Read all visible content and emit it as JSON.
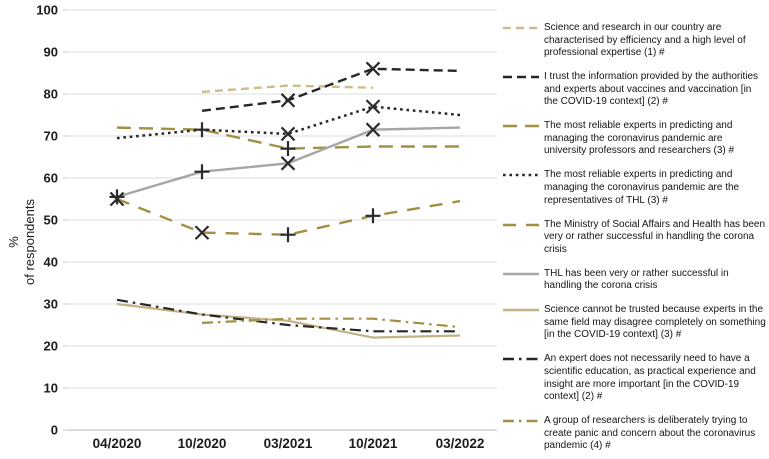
{
  "chart_data": {
    "type": "line",
    "title": "",
    "ylabel": "% of respondents",
    "ylabel_lines": [
      "%",
      "of respondents"
    ],
    "categories": [
      "04/2020",
      "10/2020",
      "03/2021",
      "10/2021",
      "03/2022"
    ],
    "y_axis": {
      "min": 0,
      "max": 100,
      "step": 10,
      "ticks": [
        0,
        10,
        20,
        30,
        40,
        50,
        60,
        70,
        80,
        90,
        100
      ]
    },
    "grid": true,
    "legend_position": "right",
    "marker_color": "#2b2b2b",
    "grid_color": "#dedede",
    "axis_line_color": "#b8b8b8",
    "series": [
      {
        "name": "science-research-efficiency",
        "label": "Science and research in our country are characterised by efficiency and a high level of professional expertise (1) #",
        "color": "#ccbd8a",
        "style": "dashed",
        "dash": "8 5",
        "width": 2.4,
        "values": [
          null,
          80.5,
          82,
          81.5,
          null
        ],
        "markers": []
      },
      {
        "name": "trust-authorities-vaccines",
        "label": "I trust the information provided by the authorities and experts about vaccines and vaccination [in the COVID-19 context] (2) #",
        "color": "#262626",
        "style": "dashed",
        "dash": "9 5",
        "width": 2.4,
        "values": [
          null,
          76,
          78.5,
          86,
          85.5
        ],
        "markers": [
          {
            "index": 2,
            "type": "x"
          },
          {
            "index": 3,
            "type": "x"
          }
        ]
      },
      {
        "name": "experts-university-professors",
        "label": "The most reliable experts in predicting and managing the coronavirus pandemic are university professors and researchers (3) #",
        "color": "#a29044",
        "style": "dashed",
        "dash": "14 8",
        "width": 2.4,
        "values": [
          72,
          71.5,
          67,
          67.5,
          67.5
        ],
        "markers": [
          {
            "index": 2,
            "type": "plus"
          }
        ]
      },
      {
        "name": "experts-thl-representatives",
        "label": "The most reliable experts in predicting and managing the coronavirus pandemic are the representatives of THL (3) #",
        "color": "#262626",
        "style": "dotted",
        "dash": "2.6 3.8",
        "width": 2.5,
        "values": [
          69.5,
          71.5,
          70.5,
          77,
          75
        ],
        "markers": [
          {
            "index": 1,
            "type": "plus"
          },
          {
            "index": 2,
            "type": "x"
          },
          {
            "index": 3,
            "type": "x"
          }
        ]
      },
      {
        "name": "ministry-social-affairs-success",
        "label": "The Ministry of Social Affairs and Health has been very or rather successful in handling the corona crisis",
        "color": "#a29044",
        "style": "dashed",
        "dash": "13 10",
        "width": 2.4,
        "values": [
          55,
          47,
          46.5,
          51,
          54.5
        ],
        "markers": [
          {
            "index": 0,
            "type": "x"
          },
          {
            "index": 1,
            "type": "x"
          },
          {
            "index": 2,
            "type": "plus"
          },
          {
            "index": 3,
            "type": "plus"
          }
        ]
      },
      {
        "name": "thl-success",
        "label": "THL has been very or rather successful in handling the corona crisis",
        "color": "#a6a6a6",
        "style": "solid",
        "dash": "",
        "width": 2.4,
        "values": [
          55.5,
          61.5,
          63.5,
          71.5,
          72
        ],
        "markers": [
          {
            "index": 0,
            "type": "plus"
          },
          {
            "index": 1,
            "type": "plus"
          },
          {
            "index": 2,
            "type": "x"
          },
          {
            "index": 3,
            "type": "x"
          }
        ]
      },
      {
        "name": "science-cannot-be-trusted",
        "label": "Science cannot be trusted because experts in the same field may disagree completely on something [in the COVID-19 context] (3) #",
        "color": "#c1b384",
        "style": "solid",
        "dash": "",
        "width": 2.2,
        "values": [
          30,
          27.5,
          26,
          22,
          22.5
        ],
        "markers": []
      },
      {
        "name": "expert-no-scientific-education",
        "label": "An expert does not necessarily need to have a scientific education, as practical experience and insight are more important [in the COVID-19 context] (2) #",
        "color": "#262626",
        "style": "dash-dot",
        "dash": "11 5 2.5 5",
        "width": 2.2,
        "values": [
          31,
          27.5,
          25,
          23.5,
          23.5
        ],
        "markers": []
      },
      {
        "name": "researchers-creating-panic",
        "label": "A group of researchers is deliberately trying to create panic and concern about the coronavirus pandemic (4) #",
        "color": "#a29044",
        "style": "dash-dot",
        "dash": "11 5 2.5 5",
        "width": 2.2,
        "values": [
          null,
          25.5,
          26.5,
          26.5,
          24.5
        ],
        "markers": []
      }
    ]
  }
}
